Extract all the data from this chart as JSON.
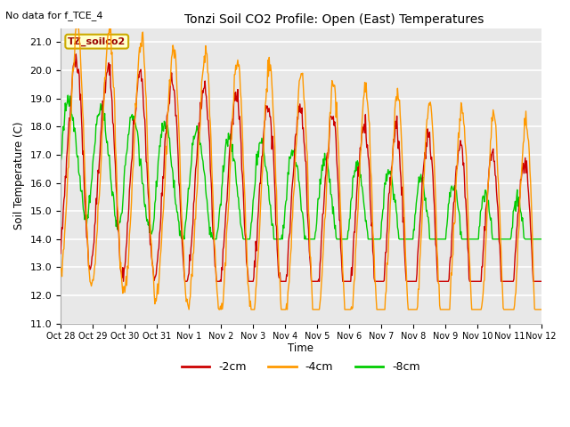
{
  "title": "Tonzi Soil CO2 Profile: Open (East) Temperatures",
  "subtitle": "No data for f_TCE_4",
  "ylabel": "Soil Temperature (C)",
  "xlabel": "Time",
  "box_label": "TZ_soilco2",
  "ylim": [
    11.0,
    21.5
  ],
  "yticks": [
    11.0,
    12.0,
    13.0,
    14.0,
    15.0,
    16.0,
    17.0,
    18.0,
    19.0,
    20.0,
    21.0
  ],
  "xtick_labels": [
    "Oct 28",
    "Oct 29",
    "Oct 30",
    "Oct 31",
    "Nov 1",
    "Nov 2",
    "Nov 3",
    "Nov 4",
    "Nov 5",
    "Nov 6",
    "Nov 7",
    "Nov 8",
    "Nov 9",
    "Nov 10",
    "Nov 11",
    "Nov 12"
  ],
  "colors": {
    "2cm": "#cc0000",
    "4cm": "#ff9900",
    "8cm": "#00cc00",
    "box_bg": "#ffffcc",
    "box_border": "#ccaa00",
    "plot_bg": "#e8e8e8",
    "grid": "#ffffff",
    "fig_bg": "#ffffff"
  },
  "legend": [
    {
      "label": "-2cm",
      "color": "#cc0000"
    },
    {
      "label": "-4cm",
      "color": "#ff9900"
    },
    {
      "label": "-8cm",
      "color": "#00cc00"
    }
  ]
}
